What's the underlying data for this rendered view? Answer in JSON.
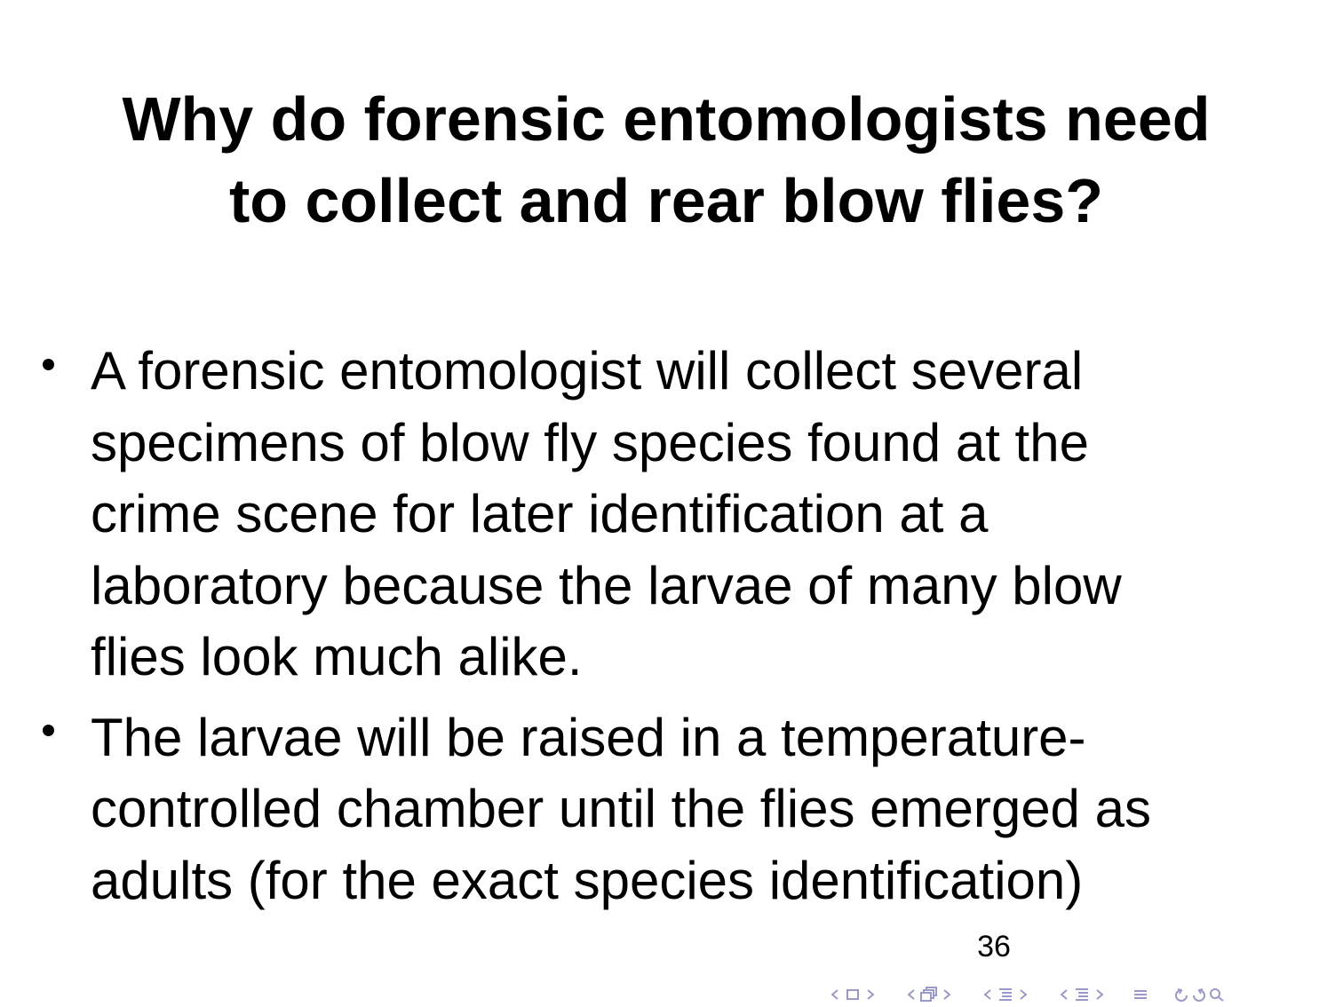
{
  "slide": {
    "title_lines": [
      "Why do forensic entomologists need",
      "to collect and rear blow flies?"
    ],
    "bullets": [
      {
        "lines": [
          "A forensic entomologist will collect several",
          "specimens of blow fly species found at the",
          "crime scene for later identification at a",
          "laboratory because the larvae of many blow",
          "flies look much alike."
        ]
      },
      {
        "lines": [
          "The larvae will be raised in a temperature-",
          "controlled chamber until the flies emerged as",
          "adults (for the exact species identification)"
        ]
      }
    ],
    "page_number": "36"
  },
  "nav": {
    "color": "#9a9ac8",
    "icons": [
      "arrow-left-icon",
      "frame-icon",
      "arrow-right-icon",
      "arrow-left-icon",
      "subsection-icon",
      "arrow-right-icon",
      "arrow-left-icon",
      "section-icon",
      "arrow-right-icon",
      "arrow-left-icon",
      "document-icon",
      "arrow-right-icon",
      "align-icon",
      "back-forward-icon",
      "search-icon"
    ]
  }
}
